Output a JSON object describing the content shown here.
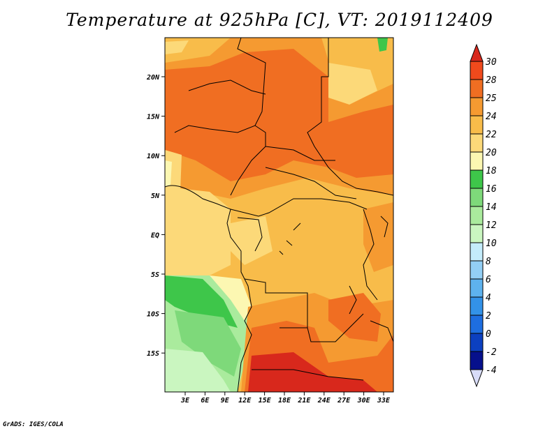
{
  "title": "Temperature at 925hPa [C], VT: 2019112409",
  "footer": "GrADS: IGES/COLA",
  "map": {
    "lon_labels": [
      "3E",
      "6E",
      "9E",
      "12E",
      "15E",
      "18E",
      "21E",
      "24E",
      "27E",
      "30E",
      "33E"
    ],
    "lat_labels": [
      "20N",
      "15N",
      "10N",
      "5N",
      "EQ",
      "5S",
      "10S",
      "15S"
    ]
  },
  "colorbar": {
    "labels": [
      "30",
      "28",
      "25",
      "24",
      "22",
      "20",
      "18",
      "16",
      "14",
      "12",
      "10",
      "8",
      "6",
      "4",
      "2",
      "0",
      "-2",
      "-4"
    ],
    "colors": [
      "#d8281c",
      "#f04a1c",
      "#f06e22",
      "#f59a31",
      "#f8bc4a",
      "#fcd979",
      "#fcf7b2",
      "#3ec64a",
      "#7ed97a",
      "#aaeb9d",
      "#caf6c0",
      "#c4ecfb",
      "#93cff5",
      "#5eb2ee",
      "#3392e8",
      "#1e6ee0",
      "#0c40c0",
      "#06108c",
      "#1c0478"
    ],
    "arrow_top_color": "#d8281c",
    "arrow_bottom_color": "#d8dcf8"
  }
}
